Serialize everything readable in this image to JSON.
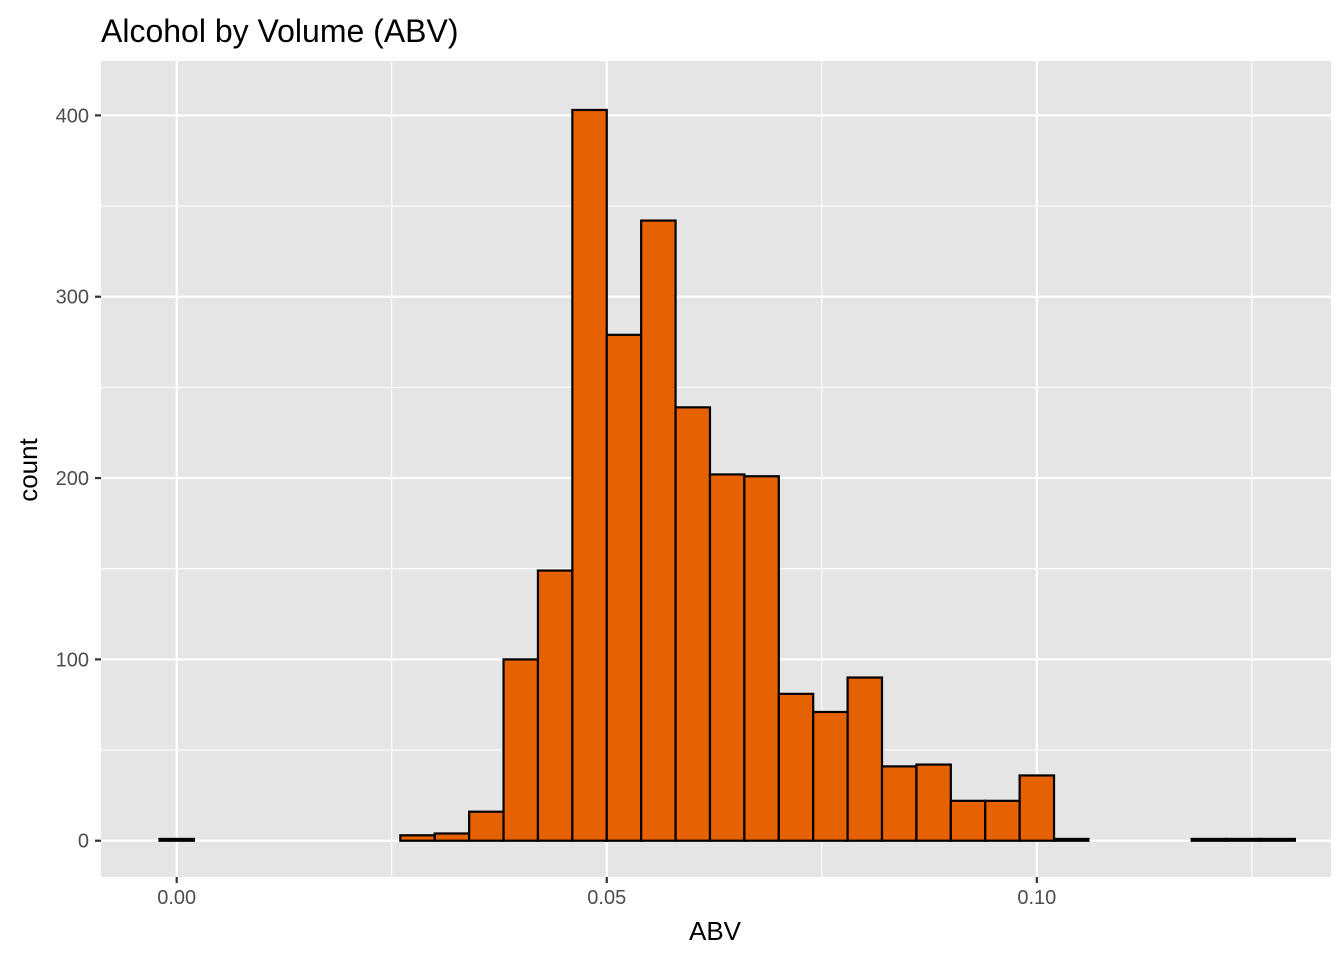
{
  "chart_data": {
    "type": "bar",
    "subtype": "histogram",
    "title": "Alcohol by Volume (ABV)",
    "xlabel": "ABV",
    "ylabel": "count",
    "xlim": [
      -0.0088,
      0.1342
    ],
    "ylim": [
      -20,
      430
    ],
    "x_ticks": [
      {
        "value": 0.0,
        "label": "0.00"
      },
      {
        "value": 0.05,
        "label": "0.05"
      },
      {
        "value": 0.1,
        "label": "0.10"
      }
    ],
    "x_minor_ticks": [
      -0.025,
      0.025,
      0.075,
      0.125
    ],
    "y_ticks": [
      {
        "value": 0,
        "label": "0"
      },
      {
        "value": 100,
        "label": "100"
      },
      {
        "value": 200,
        "label": "200"
      },
      {
        "value": 300,
        "label": "300"
      },
      {
        "value": 400,
        "label": "400"
      }
    ],
    "y_minor_ticks": [
      50,
      150,
      250,
      350
    ],
    "bin_width": 0.004,
    "first_bin_center": 0.0,
    "values": [
      1,
      0,
      0,
      0,
      0,
      0,
      0,
      3,
      4,
      16,
      100,
      149,
      403,
      279,
      342,
      239,
      202,
      201,
      81,
      71,
      90,
      41,
      42,
      22,
      22,
      36,
      1,
      0,
      0,
      0,
      1,
      1,
      1
    ],
    "fill": "#e66101",
    "stroke": "#000000",
    "panel_background": "#e5e5e5",
    "grid": true,
    "grid_color": "#ffffff"
  }
}
